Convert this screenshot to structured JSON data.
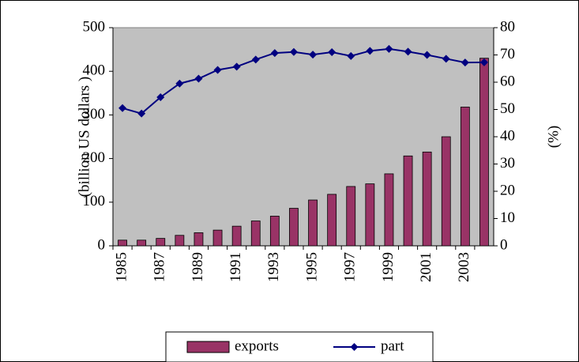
{
  "chart_data": {
    "type": "bar",
    "categories": [
      "1985",
      null,
      "1987",
      null,
      "1989",
      null,
      "1991",
      null,
      "1993",
      null,
      "1995",
      null,
      "1997",
      null,
      "1999",
      null,
      "2001",
      null,
      "2003",
      null
    ],
    "series": [
      {
        "name": "exports",
        "type": "bar",
        "color": "#993366",
        "values": [
          13,
          13,
          17,
          24,
          30,
          36,
          45,
          57,
          68,
          86,
          105,
          118,
          136,
          142,
          165,
          206,
          215,
          250,
          318,
          430
        ]
      },
      {
        "name": "part",
        "type": "line",
        "axis": "y2",
        "color": "#000080",
        "values": [
          50.5,
          48.5,
          54.5,
          59.5,
          61.3,
          64.5,
          65.7,
          68.3,
          70.7,
          71.1,
          70.1,
          71,
          69.6,
          71.5,
          72.2,
          71.2,
          70,
          68.6,
          67.2,
          67.3
        ]
      }
    ],
    "ylabel": "(billion US dollars )",
    "y2label": "(%)",
    "ylim": [
      0,
      500
    ],
    "yticks": [
      0,
      100,
      200,
      300,
      400,
      500
    ],
    "y2lim": [
      0,
      80
    ],
    "y2ticks": [
      0,
      10,
      20,
      30,
      40,
      50,
      60,
      70,
      80
    ],
    "plot_background": "#c0c0c0",
    "legend": "bottom"
  }
}
